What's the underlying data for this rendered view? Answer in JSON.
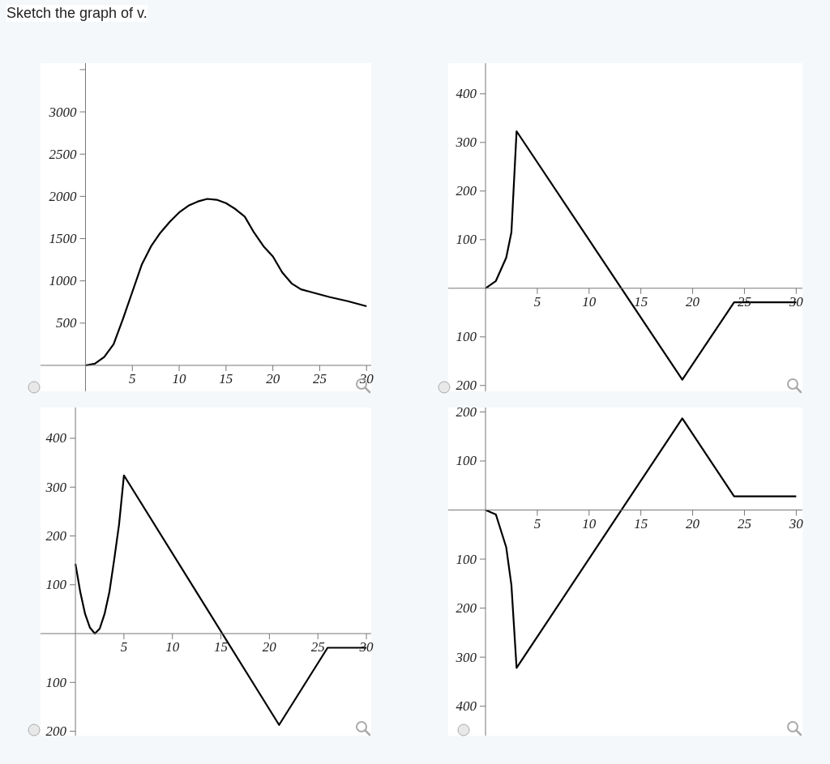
{
  "chart_data": [
    {
      "type": "line",
      "title": "Sketch the graph of v.",
      "xlim": [
        -4.8,
        30.5
      ],
      "ylim": [
        -307,
        3576
      ],
      "xticks": [
        5,
        10,
        15,
        20,
        25,
        30
      ],
      "yticks": [
        500,
        1000,
        1500,
        2000,
        2500,
        3000,
        {
          "value": 3500,
          "label": null
        }
      ],
      "marker": "none",
      "line_style": "solid",
      "x": [
        0,
        1,
        2,
        3,
        4,
        5,
        6,
        7,
        8,
        9,
        10,
        11,
        12,
        13,
        14,
        15,
        16,
        17,
        18,
        19,
        20,
        21,
        22,
        23,
        24,
        26,
        28,
        30
      ],
      "series": [
        {
          "color": "#000000",
          "values": [
            0,
            20,
            100,
            250,
            550,
            870,
            1190,
            1410,
            1570,
            1700,
            1810,
            1890,
            1940,
            1970,
            1960,
            1920,
            1850,
            1760,
            1570,
            1410,
            1290,
            1100,
            970,
            900,
            870,
            810,
            760,
            700
          ]
        }
      ]
    },
    {
      "type": "line",
      "xlim": [
        -3.6,
        30.6
      ],
      "ylim": [
        -212,
        463
      ],
      "xticks": [
        5,
        10,
        15,
        20,
        25,
        30
      ],
      "yticks": [
        {
          "value": -200,
          "label": "200"
        },
        {
          "value": -100,
          "label": "100"
        },
        100,
        200,
        300,
        400
      ],
      "marker": "none",
      "line_style": "solid",
      "x": [
        0,
        1,
        2,
        2.5,
        3,
        19,
        24,
        30
      ],
      "series": [
        {
          "color": "#000000",
          "values": [
            0,
            15,
            63,
            115,
            323,
            -188,
            -29,
            -29
          ]
        }
      ]
    },
    {
      "type": "line",
      "xlim": [
        -3.6,
        30.5
      ],
      "ylim": [
        -209,
        463
      ],
      "xticks": [
        5,
        10,
        15,
        20,
        25,
        30
      ],
      "yticks": [
        {
          "value": -200,
          "label": "200"
        },
        {
          "value": -100,
          "label": "100"
        },
        100,
        200,
        300,
        400
      ],
      "marker": "none",
      "line_style": "solid",
      "x": [
        0,
        0.5,
        1,
        1.5,
        2,
        2.5,
        3,
        3.5,
        4,
        4.5,
        5,
        21,
        26,
        30
      ],
      "series": [
        {
          "color": "#000000",
          "values": [
            143,
            85,
            40,
            12,
            0,
            10,
            40,
            85,
            152,
            224,
            324,
            -187,
            -29,
            -29
          ]
        }
      ]
    },
    {
      "type": "line",
      "xlim": [
        -3.6,
        30.6
      ],
      "ylim": [
        -460,
        209
      ],
      "xticks": [
        5,
        10,
        15,
        20,
        25,
        30
      ],
      "yticks": [
        {
          "value": -400,
          "label": "400"
        },
        {
          "value": -300,
          "label": "300"
        },
        {
          "value": -200,
          "label": "200"
        },
        {
          "value": -100,
          "label": "100"
        },
        100,
        200
      ],
      "marker": "none",
      "line_style": "solid",
      "x": [
        0,
        1,
        2,
        2.5,
        3,
        19,
        24,
        30
      ],
      "series": [
        {
          "color": "#000000",
          "values": [
            0,
            -9,
            -76,
            -153,
            -322,
            187,
            28,
            28
          ]
        }
      ]
    }
  ]
}
